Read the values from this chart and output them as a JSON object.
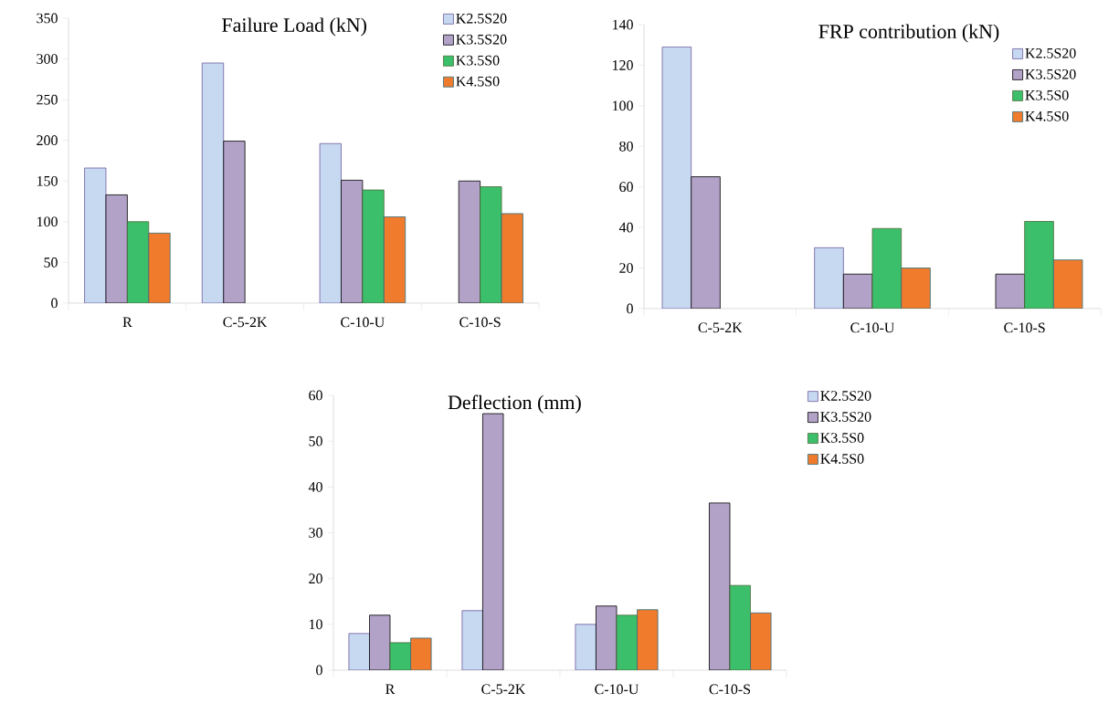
{
  "chart_data": [
    {
      "type": "bar",
      "title": "Failure Load (kN)",
      "categories": [
        "R",
        "C-5-2K",
        "C-10-U",
        "C-10-S"
      ],
      "ylim": [
        0,
        350
      ],
      "yticks": [
        0,
        50,
        100,
        150,
        200,
        250,
        300,
        350
      ],
      "legend": "top right",
      "series": [
        {
          "name": "K2.5S20",
          "color": "#c6d9f1",
          "values": [
            166,
            295,
            196,
            null
          ]
        },
        {
          "name": "K3.5S20",
          "color": "#b3a2c7",
          "values": [
            133,
            199,
            151,
            150
          ]
        },
        {
          "name": "K3.5S0",
          "color": "#3cbf6a",
          "values": [
            100,
            null,
            139,
            143
          ]
        },
        {
          "name": "K4.5S0",
          "color": "#f07b2c",
          "values": [
            86,
            null,
            106,
            110
          ]
        }
      ]
    },
    {
      "type": "bar",
      "title": "FRP contribution (kN)",
      "categories": [
        "C-5-2K",
        "C-10-U",
        "C-10-S"
      ],
      "ylim": [
        0,
        140
      ],
      "yticks": [
        0,
        20,
        40,
        60,
        80,
        100,
        120,
        140
      ],
      "legend": "right",
      "series": [
        {
          "name": "K2.5S20",
          "color": "#c6d9f1",
          "values": [
            129,
            30,
            null
          ]
        },
        {
          "name": "K3.5S20",
          "color": "#b3a2c7",
          "values": [
            65,
            17,
            17
          ]
        },
        {
          "name": "K3.5S0",
          "color": "#3cbf6a",
          "values": [
            null,
            39.5,
            43
          ]
        },
        {
          "name": "K4.5S0",
          "color": "#f07b2c",
          "values": [
            null,
            20,
            24
          ]
        }
      ]
    },
    {
      "type": "bar",
      "title": "Deflection (mm)",
      "categories": [
        "R",
        "C-5-2K",
        "C-10-U",
        "C-10-S"
      ],
      "ylim": [
        0,
        60
      ],
      "yticks": [
        0,
        10,
        20,
        30,
        40,
        50,
        60
      ],
      "legend": "top right",
      "series": [
        {
          "name": "K2.5S20",
          "color": "#c6d9f1",
          "values": [
            8,
            13,
            10,
            null
          ]
        },
        {
          "name": "K3.5S20",
          "color": "#b3a2c7",
          "values": [
            12,
            56,
            14,
            36.5
          ]
        },
        {
          "name": "K3.5S0",
          "color": "#3cbf6a",
          "values": [
            6,
            null,
            12,
            18.5
          ]
        },
        {
          "name": "K4.5S0",
          "color": "#f07b2c",
          "values": [
            7,
            null,
            13.2,
            12.5
          ]
        }
      ]
    }
  ]
}
